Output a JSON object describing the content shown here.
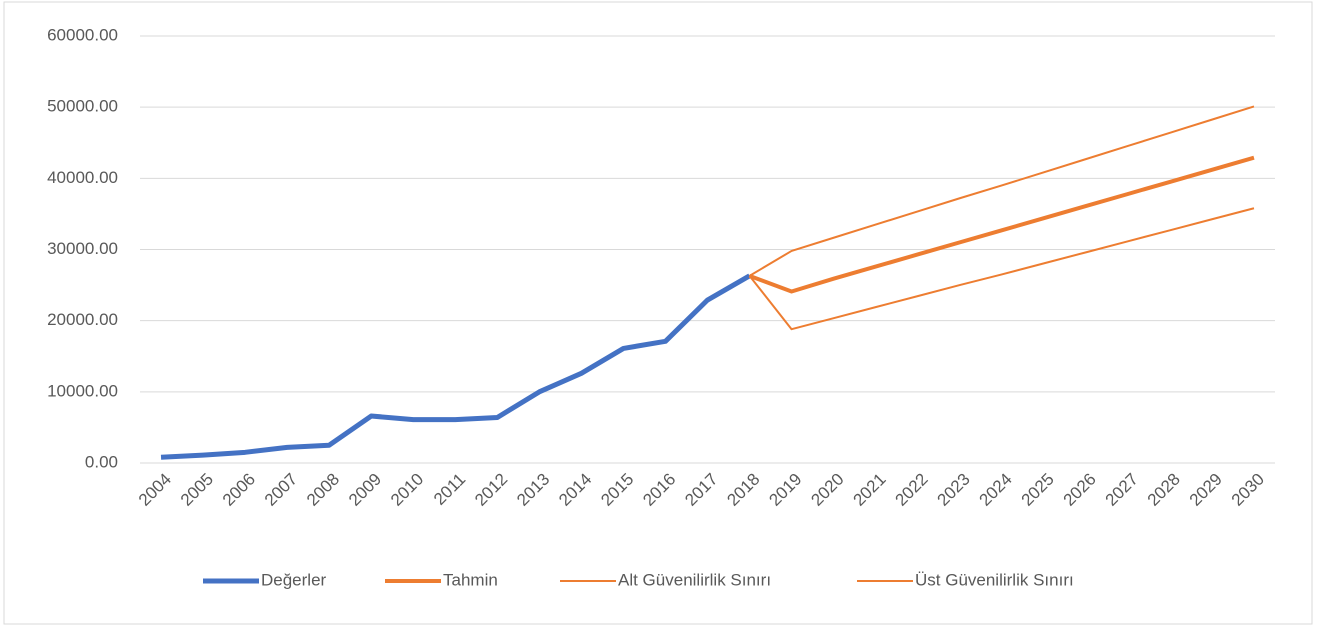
{
  "chart_data": {
    "type": "line",
    "categories": [
      "2004",
      "2005",
      "2006",
      "2007",
      "2008",
      "2009",
      "2010",
      "2011",
      "2012",
      "2013",
      "2014",
      "2015",
      "2016",
      "2017",
      "2018",
      "2019",
      "2020",
      "2021",
      "2022",
      "2023",
      "2024",
      "2025",
      "2026",
      "2027",
      "2028",
      "2029",
      "2030"
    ],
    "series": [
      {
        "name": "Değerler",
        "color": "#4472c4",
        "width": 5,
        "values": [
          800,
          1100,
          1500,
          2200,
          2500,
          6600,
          6100,
          6100,
          6400,
          10000,
          12600,
          16100,
          17100,
          22900,
          26300,
          null,
          null,
          null,
          null,
          null,
          null,
          null,
          null,
          null,
          null,
          null,
          null
        ]
      },
      {
        "name": "Tahmin",
        "color": "#ed7d31",
        "width": 4,
        "values": [
          null,
          null,
          null,
          null,
          null,
          null,
          null,
          null,
          null,
          null,
          null,
          null,
          null,
          null,
          26300,
          24100,
          25900,
          27600,
          29300,
          31000,
          32700,
          34400,
          36100,
          37800,
          39500,
          41200,
          42900
        ]
      },
      {
        "name": "Alt Güvenilirlik Sınırı",
        "color": "#ed7d31",
        "width": 2,
        "values": [
          null,
          null,
          null,
          null,
          null,
          null,
          null,
          null,
          null,
          null,
          null,
          null,
          null,
          null,
          26300,
          18800,
          20350,
          21900,
          23450,
          25000,
          26500,
          28050,
          29600,
          31150,
          32700,
          34250,
          35800
        ]
      },
      {
        "name": "Üst Güvenilirlik Sınırı",
        "color": "#ed7d31",
        "width": 2,
        "values": [
          null,
          null,
          null,
          null,
          null,
          null,
          null,
          null,
          null,
          null,
          null,
          null,
          null,
          null,
          26300,
          29800,
          31650,
          33500,
          35350,
          37200,
          39000,
          40850,
          42700,
          44550,
          46400,
          48250,
          50100
        ]
      }
    ],
    "ylim": [
      0,
      60000
    ],
    "yticks": [
      {
        "value": 0,
        "label": "0.00"
      },
      {
        "value": 10000,
        "label": "10000.00"
      },
      {
        "value": 20000,
        "label": "20000.00"
      },
      {
        "value": 30000,
        "label": "30000.00"
      },
      {
        "value": 40000,
        "label": "40000.00"
      },
      {
        "value": 50000,
        "label": "50000.00"
      },
      {
        "value": 60000,
        "label": "60000.00"
      }
    ],
    "grid": true,
    "legend": "bottom"
  }
}
